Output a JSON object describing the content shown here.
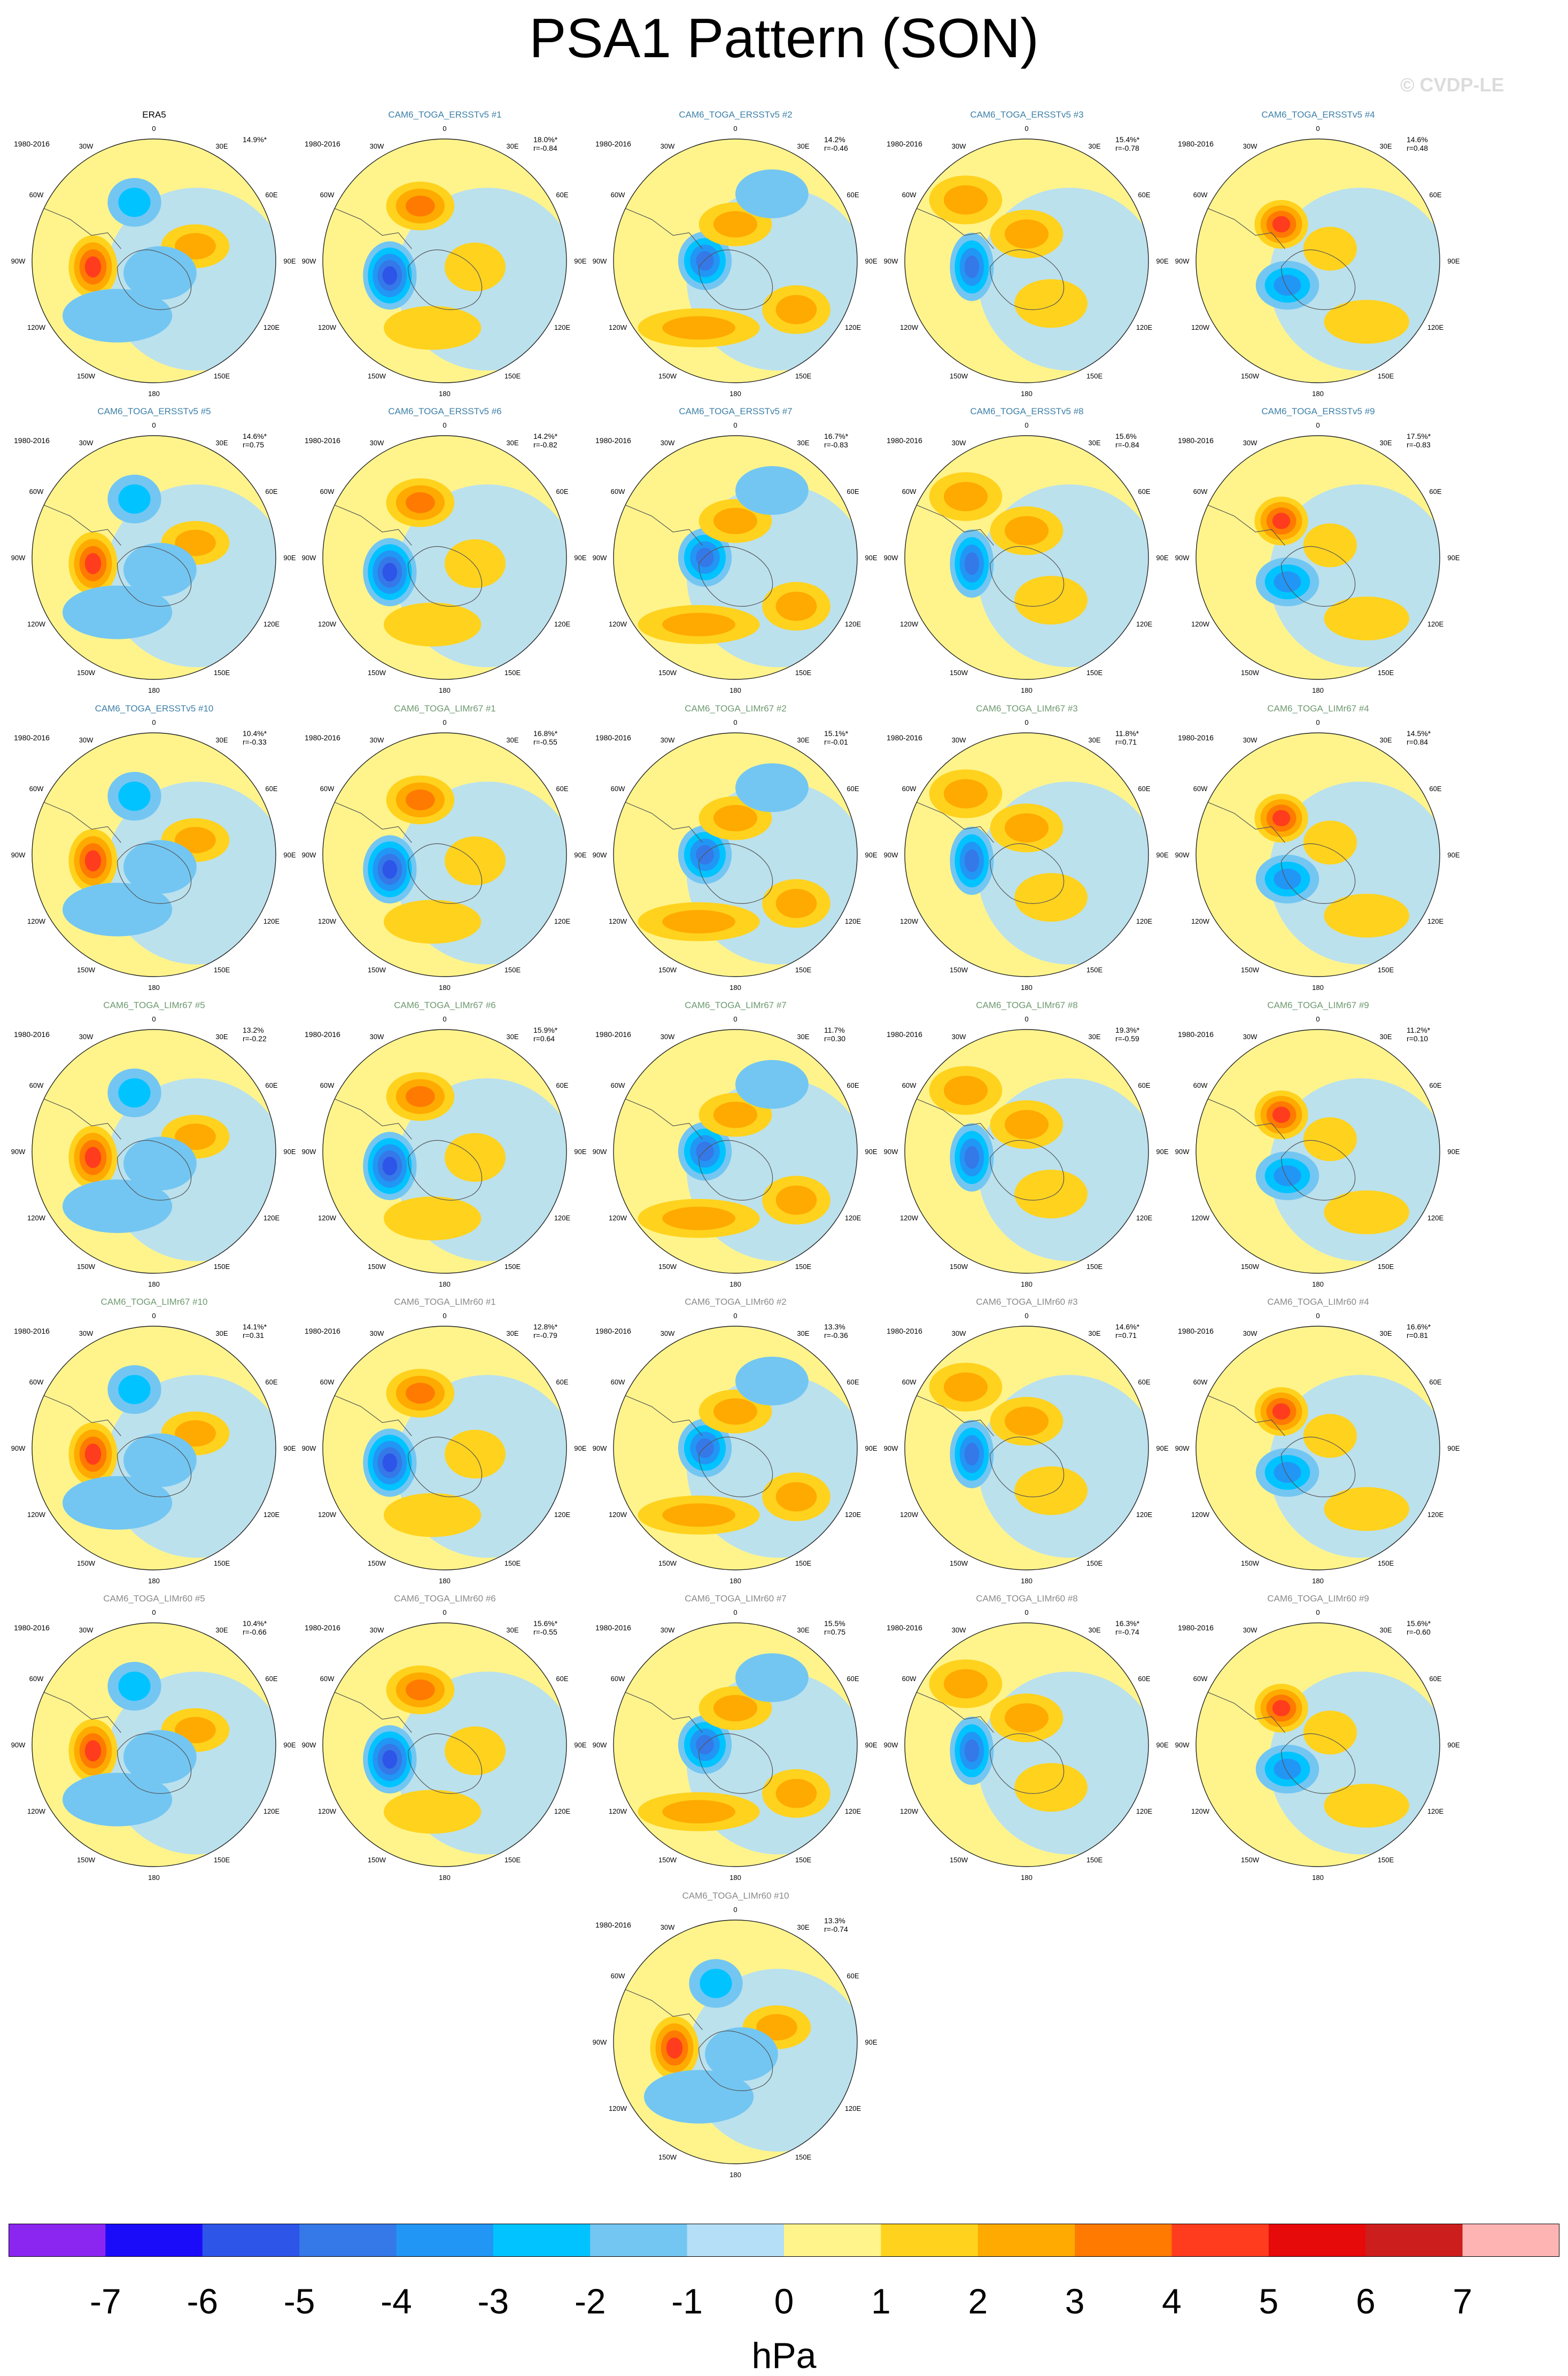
{
  "title": "PSA1 Pattern (SON)",
  "watermark": "© CVDP-LE",
  "period": "1980-2016",
  "lon_labels": [
    "0",
    "30E",
    "60E",
    "90E",
    "120E",
    "150E",
    "180",
    "150W",
    "120W",
    "90W",
    "60W",
    "30W"
  ],
  "colors": {
    "ERA5": "#000000",
    "CAM6_TOGA_ERSSTv5": "#3d80a8",
    "CAM6_TOGA_LIMr67": "#6e9970",
    "CAM6_TOGA_LIMr60": "#8a8a8a"
  },
  "chart_data": {
    "type": "heatmap",
    "title": "PSA1 Pattern (SON)",
    "units": "hPa",
    "colorbar": {
      "tick_labels": [
        "-7",
        "-6",
        "-5",
        "-4",
        "-3",
        "-2",
        "-1",
        "0",
        "1",
        "2",
        "3",
        "4",
        "5",
        "6",
        "7"
      ],
      "colors": [
        "#8b26f0",
        "#1a0cf8",
        "#2d55e8",
        "#3578e8",
        "#2196f5",
        "#00c3ff",
        "#73c6f2",
        "#b4dff7",
        "#fff48c",
        "#ffd21e",
        "#ffaa00",
        "#ff7a00",
        "#ff3c1e",
        "#e60a0a",
        "#cd1e1e",
        "#ffb4b4"
      ]
    },
    "panels": [
      {
        "name": "ERA5",
        "pct": "14.9%*",
        "r": "",
        "group": "ERA5"
      },
      {
        "name": "CAM6_TOGA_ERSSTv5 #1",
        "pct": "18.0%*",
        "r": "r=-0.84",
        "group": "CAM6_TOGA_ERSSTv5"
      },
      {
        "name": "CAM6_TOGA_ERSSTv5 #2",
        "pct": "14.2%",
        "r": "r=-0.46",
        "group": "CAM6_TOGA_ERSSTv5"
      },
      {
        "name": "CAM6_TOGA_ERSSTv5 #3",
        "pct": "15.4%*",
        "r": "r=-0.78",
        "group": "CAM6_TOGA_ERSSTv5"
      },
      {
        "name": "CAM6_TOGA_ERSSTv5 #4",
        "pct": "14.6%",
        "r": "r=0.48",
        "group": "CAM6_TOGA_ERSSTv5"
      },
      {
        "name": "CAM6_TOGA_ERSSTv5 #5",
        "pct": "14.6%*",
        "r": "r=0.75",
        "group": "CAM6_TOGA_ERSSTv5"
      },
      {
        "name": "CAM6_TOGA_ERSSTv5 #6",
        "pct": "14.2%*",
        "r": "r=-0.82",
        "group": "CAM6_TOGA_ERSSTv5"
      },
      {
        "name": "CAM6_TOGA_ERSSTv5 #7",
        "pct": "16.7%*",
        "r": "r=-0.83",
        "group": "CAM6_TOGA_ERSSTv5"
      },
      {
        "name": "CAM6_TOGA_ERSSTv5 #8",
        "pct": "15.6%",
        "r": "r=-0.84",
        "group": "CAM6_TOGA_ERSSTv5"
      },
      {
        "name": "CAM6_TOGA_ERSSTv5 #9",
        "pct": "17.5%*",
        "r": "r=-0.83",
        "group": "CAM6_TOGA_ERSSTv5"
      },
      {
        "name": "CAM6_TOGA_ERSSTv5 #10",
        "pct": "10.4%*",
        "r": "r=-0.33",
        "group": "CAM6_TOGA_ERSSTv5"
      },
      {
        "name": "CAM6_TOGA_LIMr67 #1",
        "pct": "16.8%*",
        "r": "r=-0.55",
        "group": "CAM6_TOGA_LIMr67"
      },
      {
        "name": "CAM6_TOGA_LIMr67 #2",
        "pct": "15.1%*",
        "r": "r=-0.01",
        "group": "CAM6_TOGA_LIMr67"
      },
      {
        "name": "CAM6_TOGA_LIMr67 #3",
        "pct": "11.8%*",
        "r": "r=0.71",
        "group": "CAM6_TOGA_LIMr67"
      },
      {
        "name": "CAM6_TOGA_LIMr67 #4",
        "pct": "14.5%*",
        "r": "r=0.84",
        "group": "CAM6_TOGA_LIMr67"
      },
      {
        "name": "CAM6_TOGA_LIMr67 #5",
        "pct": "13.2%",
        "r": "r=-0.22",
        "group": "CAM6_TOGA_LIMr67"
      },
      {
        "name": "CAM6_TOGA_LIMr67 #6",
        "pct": "15.9%*",
        "r": "r=0.64",
        "group": "CAM6_TOGA_LIMr67"
      },
      {
        "name": "CAM6_TOGA_LIMr67 #7",
        "pct": "11.7%",
        "r": "r=0.30",
        "group": "CAM6_TOGA_LIMr67"
      },
      {
        "name": "CAM6_TOGA_LIMr67 #8",
        "pct": "19.3%*",
        "r": "r=-0.59",
        "group": "CAM6_TOGA_LIMr67"
      },
      {
        "name": "CAM6_TOGA_LIMr67 #9",
        "pct": "11.2%*",
        "r": "r=0.10",
        "group": "CAM6_TOGA_LIMr67"
      },
      {
        "name": "CAM6_TOGA_LIMr67 #10",
        "pct": "14.1%*",
        "r": "r=0.31",
        "group": "CAM6_TOGA_LIMr67"
      },
      {
        "name": "CAM6_TOGA_LIMr60 #1",
        "pct": "12.8%*",
        "r": "r=-0.79",
        "group": "CAM6_TOGA_LIMr60"
      },
      {
        "name": "CAM6_TOGA_LIMr60 #2",
        "pct": "13.3%",
        "r": "r=-0.36",
        "group": "CAM6_TOGA_LIMr60"
      },
      {
        "name": "CAM6_TOGA_LIMr60 #3",
        "pct": "14.6%*",
        "r": "r=0.71",
        "group": "CAM6_TOGA_LIMr60"
      },
      {
        "name": "CAM6_TOGA_LIMr60 #4",
        "pct": "16.6%*",
        "r": "r=0.81",
        "group": "CAM6_TOGA_LIMr60"
      },
      {
        "name": "CAM6_TOGA_LIMr60 #5",
        "pct": "10.4%*",
        "r": "r=-0.66",
        "group": "CAM6_TOGA_LIMr60"
      },
      {
        "name": "CAM6_TOGA_LIMr60 #6",
        "pct": "15.6%*",
        "r": "r=-0.55",
        "group": "CAM6_TOGA_LIMr60"
      },
      {
        "name": "CAM6_TOGA_LIMr60 #7",
        "pct": "15.5%",
        "r": "r=0.75",
        "group": "CAM6_TOGA_LIMr60"
      },
      {
        "name": "CAM6_TOGA_LIMr60 #8",
        "pct": "16.3%*",
        "r": "r=-0.74",
        "group": "CAM6_TOGA_LIMr60"
      },
      {
        "name": "CAM6_TOGA_LIMr60 #9",
        "pct": "15.6%*",
        "r": "r=-0.60",
        "group": "CAM6_TOGA_LIMr60"
      },
      {
        "name": "CAM6_TOGA_LIMr60 #10",
        "pct": "13.3%",
        "r": "r=-0.74",
        "group": "CAM6_TOGA_LIMr60"
      }
    ]
  }
}
